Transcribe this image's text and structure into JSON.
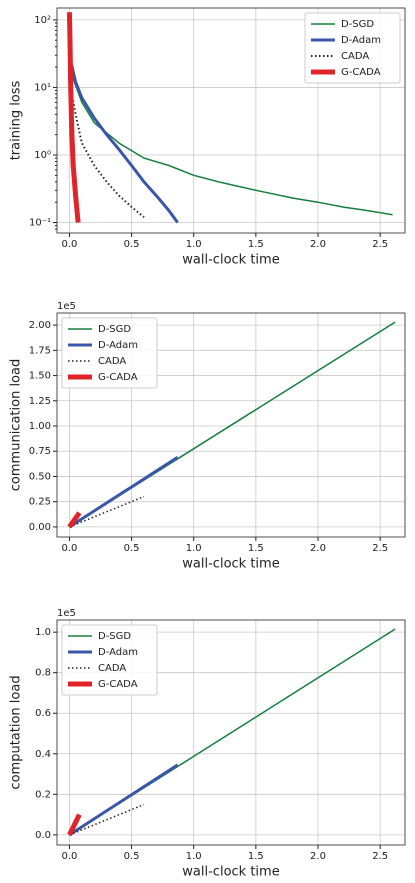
{
  "chart_data": [
    {
      "type": "line",
      "ylabel": "training loss",
      "xlabel": "wall-clock time",
      "yscale": "log",
      "grid": true,
      "legend": "upper right",
      "xlim": [
        -0.1,
        2.7
      ],
      "xticks": [
        {
          "value": 0,
          "label": "0.0"
        },
        0.5,
        {
          "value": 1,
          "label": "1.0"
        },
        1.5,
        {
          "value": 2,
          "label": "2.0"
        },
        2.5
      ],
      "ylim": [
        0.07,
        150
      ],
      "yticks": [
        {
          "value": 0.1,
          "label": "10⁻¹"
        },
        {
          "value": 1,
          "label": "10⁰"
        },
        {
          "value": 10,
          "label": "10¹"
        },
        {
          "value": 100,
          "label": "10²"
        }
      ],
      "series": [
        {
          "name": "D-SGD",
          "color": "#15803d",
          "linestyle": "solid",
          "linewidth": 1.5,
          "x": [
            0,
            0.02,
            0.1,
            0.2,
            0.4,
            0.6,
            0.8,
            1.0,
            1.2,
            1.5,
            1.8,
            2.0,
            2.2,
            2.4,
            2.6
          ],
          "values": [
            20,
            15,
            6,
            3,
            1.5,
            0.9,
            0.7,
            0.5,
            0.4,
            0.3,
            0.23,
            0.2,
            0.17,
            0.15,
            0.13
          ]
        },
        {
          "name": "D-Adam",
          "color": "#3a56a8",
          "linestyle": "solid",
          "linewidth": 3,
          "x": [
            0,
            0.05,
            0.1,
            0.2,
            0.3,
            0.4,
            0.5,
            0.6,
            0.7,
            0.8,
            0.87
          ],
          "values": [
            30,
            12,
            7,
            3.5,
            2,
            1.2,
            0.7,
            0.4,
            0.25,
            0.15,
            0.1
          ]
        },
        {
          "name": "CADA",
          "color": "#222222",
          "linestyle": "dotted",
          "linewidth": 2,
          "x": [
            0,
            0.02,
            0.05,
            0.1,
            0.2,
            0.3,
            0.4,
            0.5,
            0.6
          ],
          "values": [
            25,
            8,
            4,
            1.5,
            0.7,
            0.4,
            0.25,
            0.17,
            0.12
          ]
        },
        {
          "name": "G-CADA",
          "color": "#e0252a",
          "linestyle": "solid",
          "linewidth": 5,
          "x": [
            0,
            0.005,
            0.01,
            0.02,
            0.03,
            0.05,
            0.07
          ],
          "values": [
            130,
            50,
            10,
            2,
            0.7,
            0.25,
            0.1
          ]
        }
      ]
    },
    {
      "type": "line",
      "ylabel": "communication load",
      "xlabel": "wall-clock time",
      "offset_text": "1e5",
      "grid": true,
      "legend": "upper left",
      "xlim": [
        -0.1,
        2.7
      ],
      "xticks": [
        {
          "value": 0,
          "label": "0.0"
        },
        0.5,
        {
          "value": 1,
          "label": "1.0"
        },
        1.5,
        {
          "value": 2,
          "label": "2.0"
        },
        2.5
      ],
      "ylim": [
        -0.1,
        2.12
      ],
      "yticks": [
        {
          "value": 0,
          "label": "0.00"
        },
        0.25,
        {
          "value": 0.5,
          "label": "0.50"
        },
        0.75,
        {
          "value": 1,
          "label": "1.00"
        },
        1.25,
        {
          "value": 1.5,
          "label": "1.50"
        },
        1.75,
        {
          "value": 2,
          "label": "2.00"
        }
      ],
      "series": [
        {
          "name": "D-SGD",
          "color": "#15803d",
          "linestyle": "solid",
          "linewidth": 1.5,
          "x": [
            0,
            2.62
          ],
          "values": [
            0,
            2.03
          ]
        },
        {
          "name": "D-Adam",
          "color": "#3a56a8",
          "linestyle": "solid",
          "linewidth": 3,
          "x": [
            0,
            0.87
          ],
          "values": [
            0,
            0.69
          ]
        },
        {
          "name": "CADA",
          "color": "#222222",
          "linestyle": "dotted",
          "linewidth": 1.5,
          "x": [
            0,
            0.6
          ],
          "values": [
            0,
            0.3
          ]
        },
        {
          "name": "G-CADA",
          "color": "#e0252a",
          "linestyle": "solid",
          "linewidth": 5,
          "x": [
            0,
            0.08
          ],
          "values": [
            0,
            0.14
          ]
        }
      ]
    },
    {
      "type": "line",
      "ylabel": "computation load",
      "xlabel": "wall-clock time",
      "offset_text": "1e5",
      "grid": true,
      "legend": "upper left",
      "xlim": [
        -0.1,
        2.7
      ],
      "xticks": [
        {
          "value": 0,
          "label": "0.0"
        },
        0.5,
        {
          "value": 1,
          "label": "1.0"
        },
        1.5,
        {
          "value": 2,
          "label": "2.0"
        },
        2.5
      ],
      "ylim": [
        -0.05,
        1.06
      ],
      "yticks": [
        {
          "value": 0,
          "label": "0.0"
        },
        0.2,
        0.4,
        0.6,
        0.8,
        {
          "value": 1,
          "label": "1.0"
        }
      ],
      "series": [
        {
          "name": "D-SGD",
          "color": "#15803d",
          "linestyle": "solid",
          "linewidth": 1.5,
          "x": [
            0,
            2.62
          ],
          "values": [
            0,
            1.015
          ]
        },
        {
          "name": "D-Adam",
          "color": "#3a56a8",
          "linestyle": "solid",
          "linewidth": 3,
          "x": [
            0,
            0.87
          ],
          "values": [
            0,
            0.345
          ]
        },
        {
          "name": "CADA",
          "color": "#222222",
          "linestyle": "dotted",
          "linewidth": 1.5,
          "x": [
            0,
            0.6
          ],
          "values": [
            0,
            0.15
          ]
        },
        {
          "name": "G-CADA",
          "color": "#e0252a",
          "linestyle": "solid",
          "linewidth": 5,
          "x": [
            0,
            0.08
          ],
          "values": [
            0,
            0.1
          ]
        }
      ]
    }
  ]
}
